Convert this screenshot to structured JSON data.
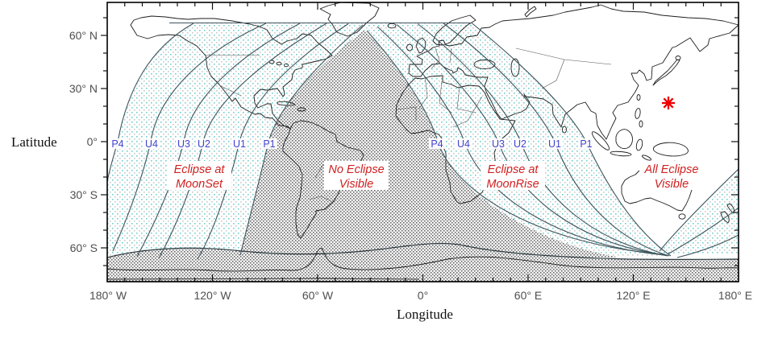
{
  "figure": {
    "x_axis": {
      "title": "Longitude",
      "tick_labels": [
        "180° W",
        "120° W",
        "60° W",
        "0°",
        "60° E",
        "120° E",
        "180° E"
      ]
    },
    "y_axis": {
      "title": "Latitude",
      "tick_labels": [
        "60° N",
        "30° N",
        "0°",
        "30° S",
        "60° S"
      ]
    }
  },
  "contact_curve_labels": {
    "moonset_side": [
      "P4",
      "U4",
      "U3",
      "U2",
      "U1",
      "P1"
    ],
    "moonrise_side": [
      "P4",
      "U4",
      "U3",
      "U2",
      "U1",
      "P1"
    ]
  },
  "region_labels": {
    "eclipse_at_moonset": {
      "line1": "Eclipse at",
      "line2": "MoonSet"
    },
    "no_eclipse": {
      "line1": "No Eclipse",
      "line2": "Visible"
    },
    "eclipse_at_moonrise": {
      "line1": "Eclipse at",
      "line2": "MoonRise"
    },
    "all_eclipse": {
      "line1": "All Eclipse",
      "line2": "Visible"
    }
  },
  "colors": {
    "contact_label": "#4343cf",
    "region_label": "#cf2020",
    "star": "#ee0000",
    "partial_zone_dot": "#6fcfcf"
  }
}
